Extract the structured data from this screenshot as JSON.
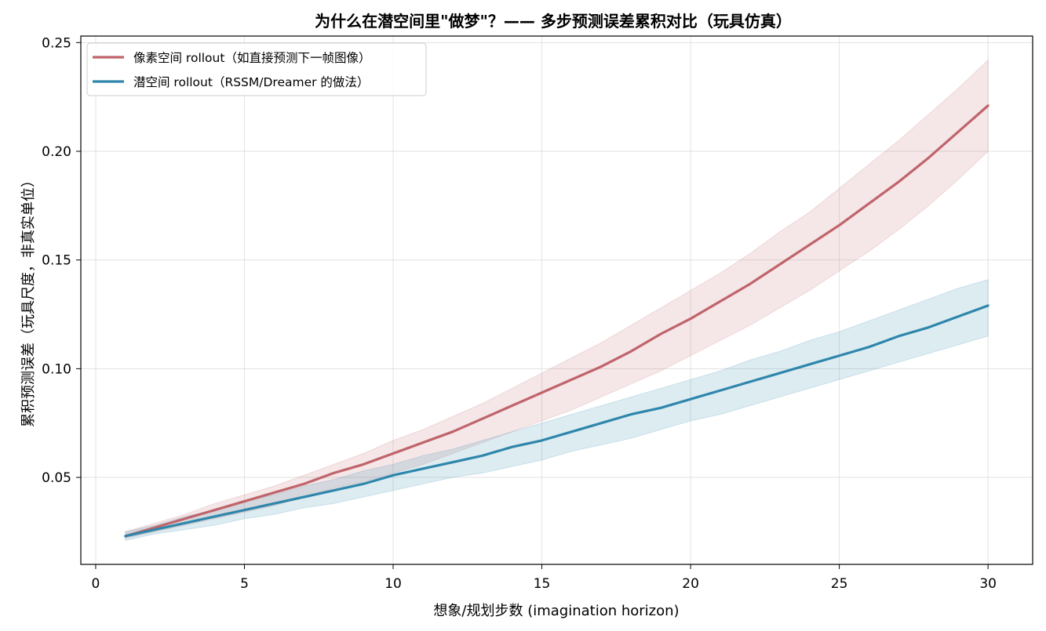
{
  "chart_data": {
    "type": "line",
    "title": "为什么在潜空间里\"做梦\"？—— 多步预测误差累积对比（玩具仿真）",
    "xlabel": "想象/规划步数 (imagination horizon)",
    "ylabel": "累积预测误差（玩具尺度，非真实单位）",
    "xlim": [
      -0.5,
      31.5
    ],
    "ylim": [
      0.01,
      0.253
    ],
    "xticks": [
      0,
      5,
      10,
      15,
      20,
      25,
      30
    ],
    "yticks": [
      0.05,
      0.1,
      0.15,
      0.2,
      0.25
    ],
    "ytick_labels": [
      "0.05",
      "0.10",
      "0.15",
      "0.20",
      "0.25"
    ],
    "grid": true,
    "legend_position": "top-left",
    "x": [
      1,
      2,
      3,
      4,
      5,
      6,
      7,
      8,
      9,
      10,
      11,
      12,
      13,
      14,
      15,
      16,
      17,
      18,
      19,
      20,
      21,
      22,
      23,
      24,
      25,
      26,
      27,
      28,
      29,
      30
    ],
    "series": [
      {
        "name": "像素空间 rollout（如直接预测下一帧图像）",
        "color": "#c0646b",
        "values": [
          0.023,
          0.027,
          0.031,
          0.035,
          0.039,
          0.043,
          0.047,
          0.052,
          0.056,
          0.061,
          0.066,
          0.071,
          0.077,
          0.083,
          0.089,
          0.095,
          0.101,
          0.108,
          0.116,
          0.123,
          0.131,
          0.139,
          0.148,
          0.157,
          0.166,
          0.176,
          0.186,
          0.197,
          0.209,
          0.221
        ],
        "band_lower": [
          0.022,
          0.025,
          0.028,
          0.031,
          0.034,
          0.037,
          0.041,
          0.045,
          0.048,
          0.052,
          0.056,
          0.061,
          0.066,
          0.071,
          0.076,
          0.081,
          0.087,
          0.093,
          0.099,
          0.106,
          0.113,
          0.12,
          0.128,
          0.136,
          0.145,
          0.154,
          0.164,
          0.175,
          0.187,
          0.2
        ],
        "band_upper": [
          0.025,
          0.029,
          0.033,
          0.038,
          0.042,
          0.046,
          0.051,
          0.056,
          0.061,
          0.067,
          0.072,
          0.078,
          0.084,
          0.091,
          0.098,
          0.105,
          0.112,
          0.12,
          0.128,
          0.136,
          0.144,
          0.153,
          0.163,
          0.172,
          0.183,
          0.194,
          0.205,
          0.217,
          0.229,
          0.242
        ]
      },
      {
        "name": "潜空间 rollout（RSSM/Dreamer 的做法）",
        "color": "#2e86ab",
        "values": [
          0.023,
          0.026,
          0.029,
          0.032,
          0.035,
          0.038,
          0.041,
          0.044,
          0.047,
          0.051,
          0.054,
          0.057,
          0.06,
          0.064,
          0.067,
          0.071,
          0.075,
          0.079,
          0.082,
          0.086,
          0.09,
          0.094,
          0.098,
          0.102,
          0.106,
          0.11,
          0.115,
          0.119,
          0.124,
          0.129
        ],
        "band_lower": [
          0.021,
          0.024,
          0.026,
          0.028,
          0.031,
          0.033,
          0.036,
          0.038,
          0.041,
          0.044,
          0.047,
          0.05,
          0.052,
          0.055,
          0.058,
          0.062,
          0.065,
          0.068,
          0.072,
          0.076,
          0.079,
          0.083,
          0.087,
          0.091,
          0.095,
          0.099,
          0.103,
          0.107,
          0.111,
          0.115
        ],
        "band_upper": [
          0.025,
          0.028,
          0.032,
          0.035,
          0.039,
          0.042,
          0.046,
          0.049,
          0.053,
          0.056,
          0.06,
          0.063,
          0.067,
          0.071,
          0.075,
          0.079,
          0.083,
          0.087,
          0.091,
          0.095,
          0.099,
          0.104,
          0.108,
          0.113,
          0.117,
          0.122,
          0.127,
          0.132,
          0.137,
          0.141
        ]
      }
    ]
  }
}
